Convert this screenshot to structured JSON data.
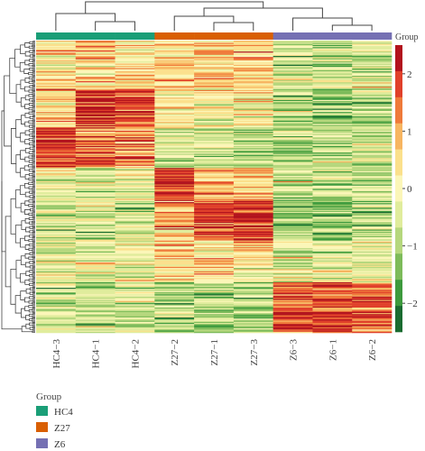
{
  "chart_data": {
    "type": "heatmap",
    "columns": [
      "HC4-3",
      "HC4-1",
      "HC4-2",
      "Z27-2",
      "Z27-1",
      "Z27-3",
      "Z6-3",
      "Z6-1",
      "Z6-2"
    ],
    "column_groups": [
      "HC4",
      "HC4",
      "HC4",
      "Z27",
      "Z27",
      "Z27",
      "Z6",
      "Z6",
      "Z6"
    ],
    "group_annotation_title": "Group",
    "groups": [
      {
        "name": "HC4",
        "color": "#1a9e77"
      },
      {
        "name": "Z27",
        "color": "#d95f02"
      },
      {
        "name": "Z6",
        "color": "#7570b3"
      }
    ],
    "color_scale": {
      "ticks": [
        2,
        1,
        0,
        -1,
        -2
      ],
      "range": [
        -2.5,
        2.5
      ],
      "colors": [
        "#1a6b30",
        "#3d9a3d",
        "#7dbb5a",
        "#b5d77d",
        "#e0ec9c",
        "#fbf6b8",
        "#fbe08c",
        "#f7b561",
        "#ef7a3a",
        "#e0402a",
        "#b2121d"
      ]
    },
    "row_clusters": [
      {
        "rows": 44,
        "values": [
          0.3,
          0.5,
          0.4,
          0.5,
          0.6,
          0.5,
          -0.5,
          -0.6,
          -0.4
        ]
      },
      {
        "rows": 36,
        "values": [
          0.6,
          2.0,
          1.8,
          0.1,
          0.0,
          0.1,
          -0.9,
          -1.1,
          -0.9
        ]
      },
      {
        "rows": 36,
        "values": [
          2.0,
          1.4,
          1.2,
          -0.5,
          -0.4,
          -0.6,
          -0.7,
          -0.6,
          -0.7
        ]
      },
      {
        "rows": 30,
        "values": [
          -0.3,
          -0.4,
          -0.2,
          1.8,
          1.0,
          0.7,
          -0.6,
          -0.8,
          -0.6
        ]
      },
      {
        "rows": 36,
        "values": [
          -0.5,
          -0.6,
          -0.4,
          1.0,
          1.8,
          2.0,
          -0.9,
          -1.0,
          -0.9
        ]
      },
      {
        "rows": 38,
        "values": [
          -0.3,
          -0.3,
          -0.2,
          0.3,
          0.4,
          0.3,
          -0.2,
          -0.3,
          -0.3
        ]
      },
      {
        "rows": 46,
        "values": [
          -0.6,
          -0.8,
          -0.7,
          -0.8,
          -0.9,
          -0.8,
          1.8,
          1.9,
          1.5
        ]
      }
    ]
  }
}
